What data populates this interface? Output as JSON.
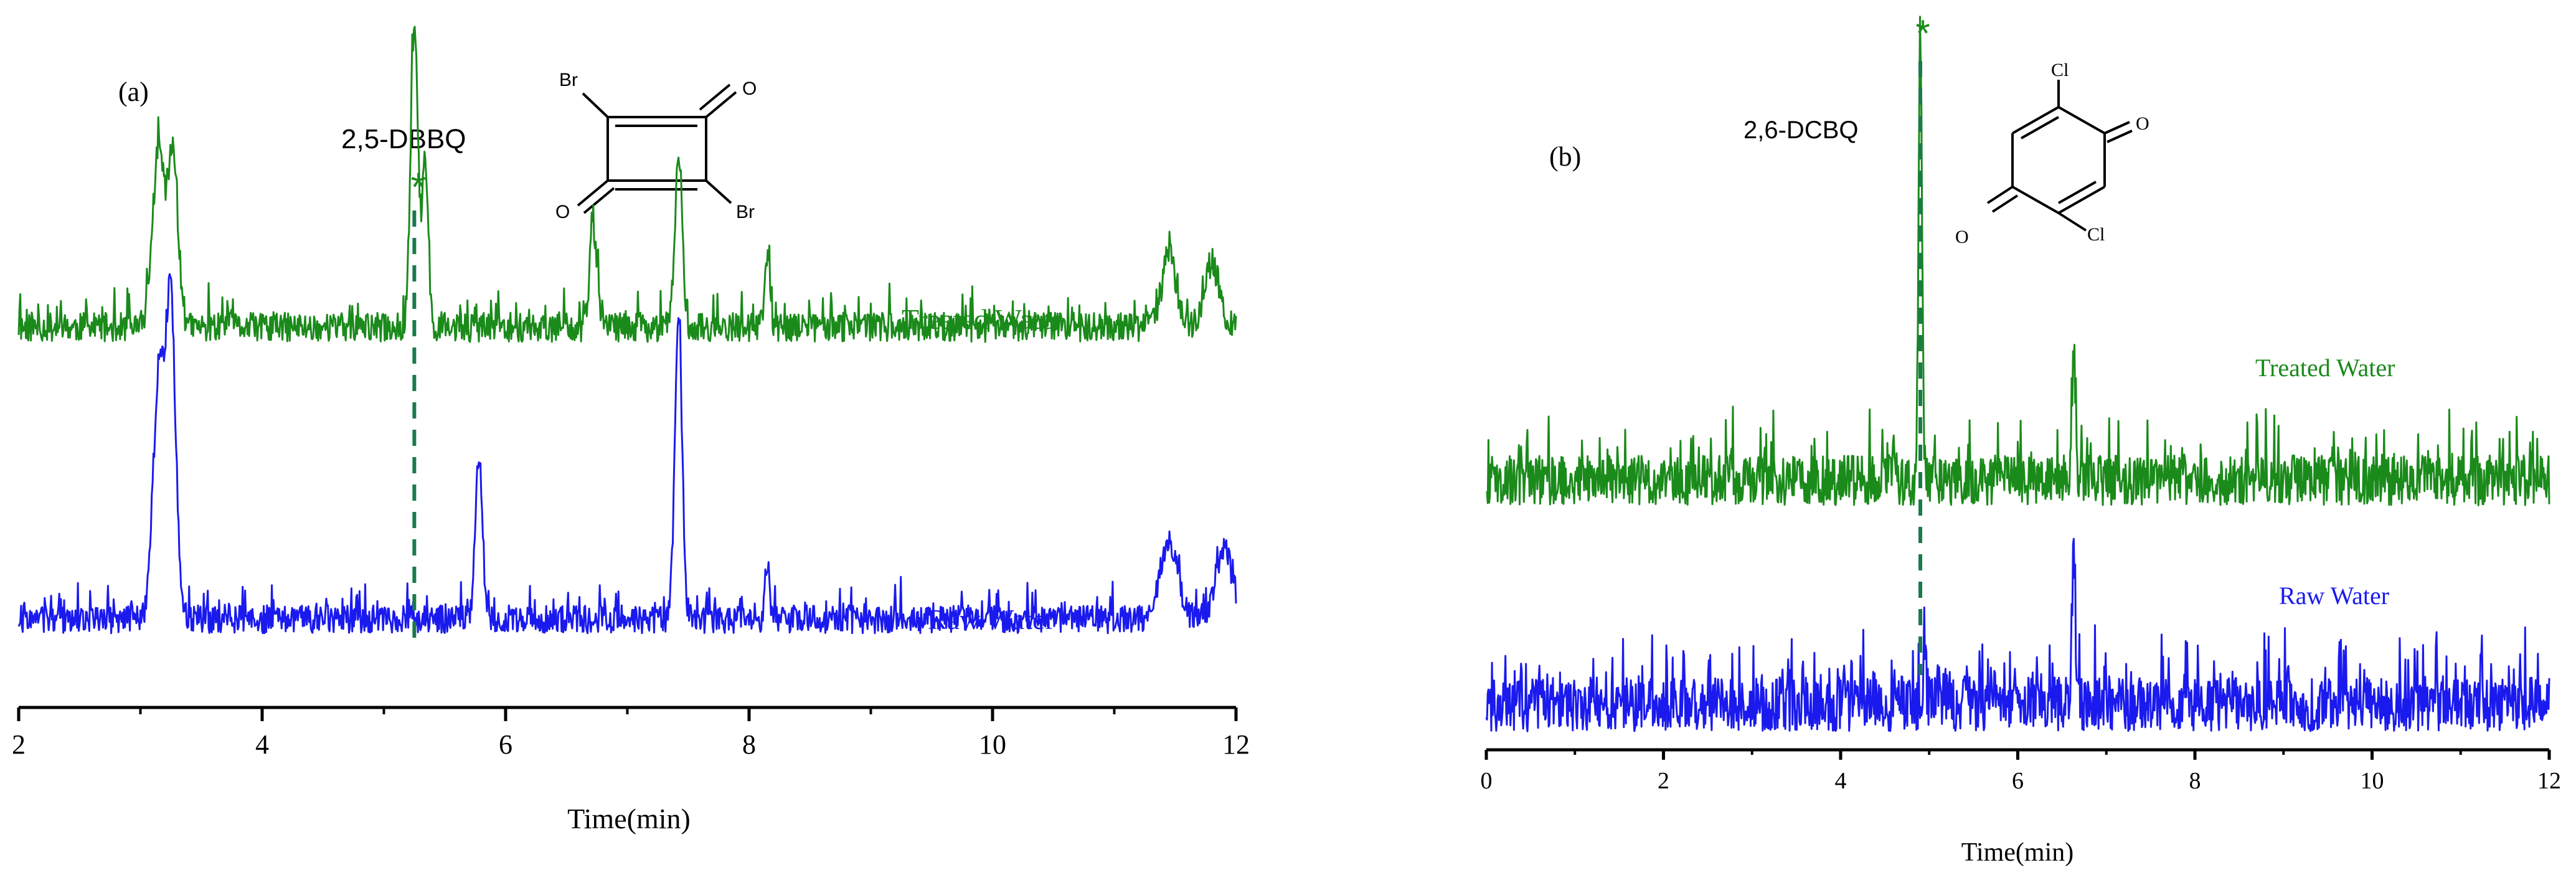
{
  "colors": {
    "treated": "#1a8a1a",
    "raw": "#1a1aee",
    "axis": "#000000",
    "marker": "#1a8a1a"
  },
  "chart_data": [
    {
      "type": "line",
      "panel_label": "(a)",
      "compound": "2,5-DBBQ",
      "marker": "*",
      "structure_atoms": [
        "Br",
        "O",
        "O",
        "Br"
      ],
      "xlabel": "Time(min)",
      "ylabel": "",
      "xlim": [
        2,
        12
      ],
      "xticks": [
        "2",
        "4",
        "6",
        "8",
        "10",
        "12"
      ],
      "marker_time": 5.25,
      "series": [
        {
          "name": "Treated Water",
          "baseline": 0.22,
          "noise": 0.045,
          "seed": 11,
          "peaks": [
            [
              3.15,
              0.55,
              0.05
            ],
            [
              3.27,
              0.52,
              0.04
            ],
            [
              5.25,
              0.95,
              0.03
            ],
            [
              5.34,
              0.5,
              0.025
            ],
            [
              6.72,
              0.3,
              0.03
            ],
            [
              7.42,
              0.52,
              0.03
            ],
            [
              8.15,
              0.2,
              0.02
            ],
            [
              11.45,
              0.22,
              0.06
            ],
            [
              11.8,
              0.2,
              0.06
            ]
          ]
        },
        {
          "name": "Raw Water",
          "baseline": 0.16,
          "noise": 0.04,
          "seed": 27,
          "peaks": [
            [
              3.15,
              0.7,
              0.045
            ],
            [
              3.25,
              0.9,
              0.04
            ],
            [
              5.78,
              0.45,
              0.03
            ],
            [
              7.42,
              0.85,
              0.03
            ],
            [
              8.15,
              0.15,
              0.02
            ],
            [
              11.45,
              0.22,
              0.07
            ],
            [
              11.9,
              0.2,
              0.07
            ]
          ]
        }
      ]
    },
    {
      "type": "line",
      "panel_label": "(b)",
      "compound": "2,6-DCBQ",
      "marker": "*",
      "structure_atoms": [
        "Cl",
        "O",
        "O",
        "Cl"
      ],
      "xlabel": "Time(min)",
      "ylabel": "",
      "xlim": [
        0,
        12
      ],
      "xticks": [
        "0",
        "2",
        "4",
        "6",
        "8",
        "10",
        "12"
      ],
      "marker_time": 4.9,
      "series": [
        {
          "name": "Treated Water",
          "baseline": 0.1,
          "noise": 0.13,
          "seed": 43,
          "peaks": [
            [
              4.9,
              2.3,
              0.02
            ],
            [
              6.63,
              0.65,
              0.02
            ]
          ]
        },
        {
          "name": "Raw Water",
          "baseline": 0.1,
          "noise": 0.14,
          "seed": 59,
          "peaks": [
            [
              6.63,
              0.75,
              0.02
            ],
            [
              5.4,
              0.25,
              0.02
            ],
            [
              4.95,
              0.2,
              0.02
            ]
          ]
        }
      ]
    }
  ]
}
